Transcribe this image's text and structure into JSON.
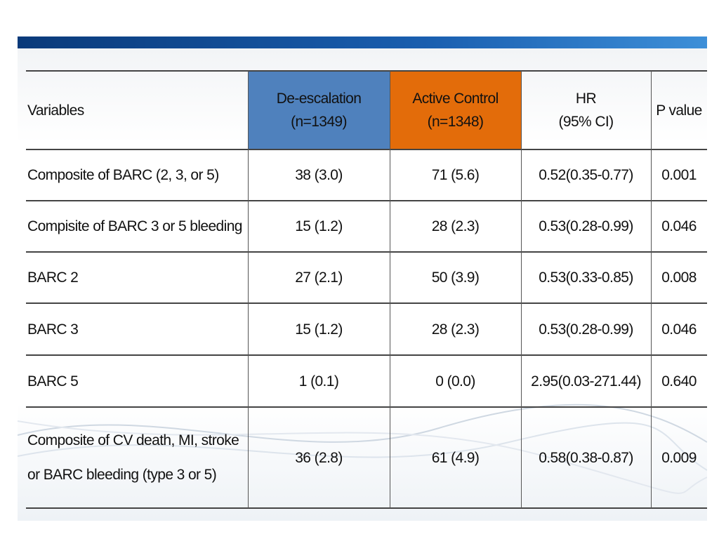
{
  "table": {
    "headers": [
      [
        "Variables"
      ],
      [
        "De-escalation",
        "(n=1349)"
      ],
      [
        "Active Control",
        "(n=1348)"
      ],
      [
        "HR",
        "(95% CI)"
      ],
      [
        "P value"
      ]
    ],
    "rows": [
      [
        [
          "Composite of BARC (2, 3, or 5)"
        ],
        [
          "38 (3.0)"
        ],
        [
          "71 (5.6)"
        ],
        [
          "0.52(0.35-0.77)"
        ],
        [
          "0.001"
        ]
      ],
      [
        [
          "Compisite of BARC 3 or 5 bleeding"
        ],
        [
          "15 (1.2)"
        ],
        [
          "28 (2.3)"
        ],
        [
          "0.53(0.28-0.99)"
        ],
        [
          "0.046"
        ]
      ],
      [
        [
          "BARC 2"
        ],
        [
          "27 (2.1)"
        ],
        [
          "50 (3.9)"
        ],
        [
          "0.53(0.33-0.85)"
        ],
        [
          "0.008"
        ]
      ],
      [
        [
          "BARC 3"
        ],
        [
          "15 (1.2)"
        ],
        [
          "28 (2.3)"
        ],
        [
          "0.53(0.28-0.99)"
        ],
        [
          "0.046"
        ]
      ],
      [
        [
          "BARC 5"
        ],
        [
          "1 (0.1)"
        ],
        [
          "0 (0.0)"
        ],
        [
          "2.95(0.03-271.44)"
        ],
        [
          "0.640"
        ]
      ],
      [
        [
          "Composite of CV death, MI, stroke",
          "or BARC bleeding (type 3 or 5)"
        ],
        [
          "36 (2.8)"
        ],
        [
          "61 (4.9)"
        ],
        [
          "0.58(0.38-0.87)"
        ],
        [
          "0.009"
        ]
      ]
    ]
  }
}
